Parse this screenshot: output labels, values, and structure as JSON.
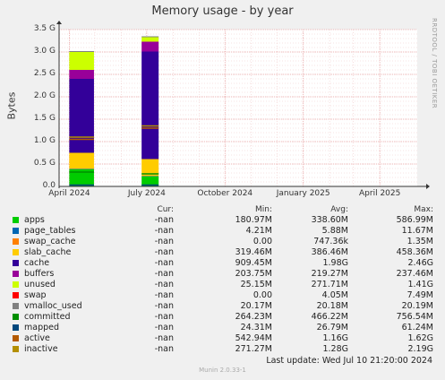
{
  "title": "Memory usage - by year",
  "side_label": "RRDTOOL / TOBI OETIKER",
  "legend_headers": {
    "cur": "Cur:",
    "min": "Min:",
    "avg": "Avg:",
    "max": "Max:"
  },
  "legend": [
    {
      "name": "apps",
      "color": "#00cc00",
      "cur": "-nan",
      "min": "180.97M",
      "avg": "338.60M",
      "max": "586.99M"
    },
    {
      "name": "page_tables",
      "color": "#0066b3",
      "cur": "-nan",
      "min": "4.21M",
      "avg": "5.88M",
      "max": "11.67M"
    },
    {
      "name": "swap_cache",
      "color": "#ff8000",
      "cur": "-nan",
      "min": "0.00",
      "avg": "747.36k",
      "max": "1.35M"
    },
    {
      "name": "slab_cache",
      "color": "#ffcc00",
      "cur": "-nan",
      "min": "319.46M",
      "avg": "386.46M",
      "max": "458.36M"
    },
    {
      "name": "cache",
      "color": "#330099",
      "cur": "-nan",
      "min": "909.45M",
      "avg": "1.98G",
      "max": "2.46G"
    },
    {
      "name": "buffers",
      "color": "#990099",
      "cur": "-nan",
      "min": "203.75M",
      "avg": "219.27M",
      "max": "237.46M"
    },
    {
      "name": "unused",
      "color": "#ccff00",
      "cur": "-nan",
      "min": "25.15M",
      "avg": "271.71M",
      "max": "1.41G"
    },
    {
      "name": "swap",
      "color": "#ff0000",
      "cur": "-nan",
      "min": "0.00",
      "avg": "4.05M",
      "max": "7.49M"
    },
    {
      "name": "vmalloc_used",
      "color": "#808080",
      "cur": "-nan",
      "min": "20.17M",
      "avg": "20.18M",
      "max": "20.19M"
    },
    {
      "name": "committed",
      "color": "#008f00",
      "cur": "-nan",
      "min": "264.23M",
      "avg": "466.22M",
      "max": "756.54M"
    },
    {
      "name": "mapped",
      "color": "#00487d",
      "cur": "-nan",
      "min": "24.31M",
      "avg": "26.79M",
      "max": "61.24M"
    },
    {
      "name": "active",
      "color": "#b35a00",
      "cur": "-nan",
      "min": "542.94M",
      "avg": "1.16G",
      "max": "1.62G"
    },
    {
      "name": "inactive",
      "color": "#b38f00",
      "cur": "-nan",
      "min": "271.27M",
      "avg": "1.28G",
      "max": "2.19G"
    }
  ],
  "footer": "Last update:  Wed Jul 10 21:20:00 2024",
  "version": "Munin 2.0.33-1",
  "chart_data": {
    "type": "area",
    "title": "Memory usage - by year",
    "ylabel": "Bytes",
    "xlabel": "",
    "ylim": [
      0,
      3.5
    ],
    "y_unit": "G",
    "yticks": [
      "0.0",
      "0.5 G",
      "1.0 G",
      "1.5 G",
      "2.0 G",
      "2.5 G",
      "3.0 G",
      "3.5 G"
    ],
    "ytick_values": [
      0,
      0.5,
      1.0,
      1.5,
      2.0,
      2.5,
      3.0,
      3.5
    ],
    "xticks": [
      "April 2024",
      "July 2024",
      "October 2024",
      "January 2025",
      "April 2025"
    ],
    "xtick_dates": [
      "2024-04-01",
      "2024-07-01",
      "2024-10-01",
      "2025-01-01",
      "2025-04-01"
    ],
    "xlim": [
      "2024-03-20",
      "2025-05-15"
    ],
    "grid": true,
    "stack_order": [
      "apps",
      "page_tables",
      "swap_cache",
      "slab_cache",
      "cache",
      "buffers",
      "unused",
      "swap",
      "vmalloc_used"
    ],
    "line_series": [
      "committed",
      "mapped",
      "active",
      "inactive"
    ],
    "segments": [
      {
        "x": [
          "2024-04-01",
          "2024-04-30"
        ],
        "stack": {
          "apps": 0.38,
          "page_tables": 0.01,
          "swap_cache": 0.0,
          "slab_cache": 0.36,
          "cache": 1.65,
          "buffers": 0.2,
          "unused": 0.4,
          "swap": 0.0,
          "vmalloc_used": 0.02
        },
        "lines": {
          "committed": 0.32,
          "mapped": 0.03,
          "active": 1.05,
          "inactive": 1.1
        }
      },
      {
        "x": [
          "2024-06-25",
          "2024-07-15"
        ],
        "stack": {
          "apps": 0.22,
          "page_tables": 0.01,
          "swap_cache": 0.0,
          "slab_cache": 0.38,
          "cache": 2.4,
          "buffers": 0.22,
          "unused": 0.1,
          "swap": 0.0,
          "vmalloc_used": 0.02
        },
        "lines": {
          "committed": 0.28,
          "mapped": 0.03,
          "active": 1.3,
          "inactive": 1.35
        }
      }
    ]
  }
}
